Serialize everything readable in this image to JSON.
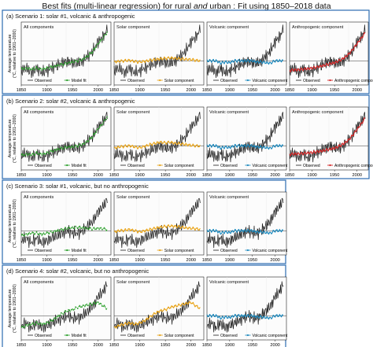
{
  "title": {
    "prefix": "Best fits (multi-linear regression) for rural ",
    "emph": "and",
    "suffix": " urban : Fit using 1850–2018 data"
  },
  "axis_label_lines": [
    "Average temperature",
    "(°C, relative to 1901–2000)"
  ],
  "x_ticks": [
    "1850",
    "1900",
    "1950",
    "2000"
  ],
  "colors": {
    "frame": "#2b6cb0",
    "observed": "#1a1a1a",
    "model_fit": "#2ca02c",
    "solar": "#e8a317",
    "volcanic": "#1f8bbf",
    "anthropogenic": "#d62728"
  },
  "chart_data": [
    {
      "type": "line",
      "scenario": "(a) Scenario 1: solar #1, volcanic & anthropogenic",
      "panels": [
        {
          "title": "All components",
          "component": "model_fit",
          "legend": [
            "Observed",
            "Model fit"
          ]
        },
        {
          "title": "Solar component",
          "component": "solar",
          "legend": [
            "Observed",
            "Solar component"
          ]
        },
        {
          "title": "Volcanic component",
          "component": "volcanic",
          "legend": [
            "Observed",
            "Volcanic component"
          ]
        },
        {
          "title": "Anthropogenic component",
          "component": "anthropogenic",
          "legend": [
            "Observed",
            "Anthropogenic component"
          ]
        }
      ],
      "x": [
        1850,
        1860,
        1870,
        1880,
        1890,
        1900,
        1910,
        1920,
        1930,
        1940,
        1950,
        1960,
        1970,
        1980,
        1990,
        2000,
        2010,
        2018
      ],
      "series": [
        {
          "name": "Observed",
          "values": [
            -0.4,
            -0.3,
            -0.5,
            -0.3,
            -0.5,
            -0.4,
            -0.3,
            -0.2,
            -0.1,
            0.0,
            -0.1,
            -0.1,
            0.0,
            0.2,
            0.4,
            0.8,
            1.0,
            1.3
          ]
        },
        {
          "name": "Model fit",
          "values": [
            -0.35,
            -0.3,
            -0.35,
            -0.3,
            -0.35,
            -0.3,
            -0.25,
            -0.2,
            -0.15,
            -0.1,
            -0.05,
            0.0,
            0.05,
            0.2,
            0.4,
            0.7,
            0.95,
            1.2
          ]
        },
        {
          "name": "Solar component",
          "values": [
            -0.05,
            -0.02,
            0.0,
            0.02,
            -0.03,
            -0.05,
            -0.02,
            0.02,
            0.05,
            0.08,
            0.1,
            0.12,
            0.1,
            0.08,
            0.06,
            0.05,
            0.02,
            0.0
          ]
        },
        {
          "name": "Volcanic component",
          "values": [
            0.0,
            0.0,
            0.0,
            -0.1,
            -0.05,
            -0.08,
            0.0,
            0.0,
            0.0,
            0.0,
            0.0,
            -0.05,
            -0.05,
            -0.08,
            -0.1,
            0.0,
            0.0,
            0.0
          ]
        },
        {
          "name": "Anthropogenic component",
          "values": [
            -0.4,
            -0.38,
            -0.37,
            -0.35,
            -0.33,
            -0.3,
            -0.27,
            -0.22,
            -0.18,
            -0.12,
            -0.08,
            0.0,
            0.1,
            0.25,
            0.45,
            0.7,
            0.95,
            1.15
          ]
        }
      ],
      "ylim": [
        -1.0,
        1.6
      ]
    },
    {
      "type": "line",
      "scenario": "(b) Scenario 2: solar #2, volcanic & anthropogenic",
      "panels": [
        {
          "title": "All components",
          "component": "model_fit",
          "legend": [
            "Observed",
            "Model fit"
          ]
        },
        {
          "title": "Solar component",
          "component": "solar",
          "legend": [
            "Observed",
            "Solar component"
          ]
        },
        {
          "title": "Volcanic component",
          "component": "volcanic",
          "legend": [
            "Observed",
            "Volcanic component"
          ]
        },
        {
          "title": "Anthropogenic component",
          "component": "anthropogenic",
          "legend": [
            "Observed",
            "Anthropogenic component"
          ]
        }
      ],
      "x": [
        1850,
        1860,
        1870,
        1880,
        1890,
        1900,
        1910,
        1920,
        1930,
        1940,
        1950,
        1960,
        1970,
        1980,
        1990,
        2000,
        2010,
        2018
      ],
      "series": [
        {
          "name": "Observed",
          "values": [
            -0.4,
            -0.3,
            -0.5,
            -0.3,
            -0.5,
            -0.4,
            -0.3,
            -0.2,
            -0.1,
            0.0,
            -0.1,
            -0.1,
            0.0,
            0.2,
            0.4,
            0.8,
            1.0,
            1.3
          ]
        },
        {
          "name": "Model fit",
          "values": [
            -0.4,
            -0.35,
            -0.38,
            -0.3,
            -0.35,
            -0.3,
            -0.22,
            -0.15,
            -0.1,
            -0.05,
            -0.05,
            0.0,
            0.05,
            0.2,
            0.4,
            0.7,
            0.95,
            1.2
          ]
        },
        {
          "name": "Solar component",
          "values": [
            -0.1,
            -0.05,
            -0.02,
            0.0,
            -0.05,
            -0.08,
            -0.02,
            0.05,
            0.1,
            0.15,
            0.12,
            0.15,
            0.1,
            0.08,
            0.05,
            0.02,
            0.0,
            -0.02
          ]
        },
        {
          "name": "Volcanic component",
          "values": [
            0.0,
            0.0,
            0.0,
            -0.1,
            -0.05,
            -0.08,
            0.0,
            0.0,
            0.0,
            0.0,
            0.0,
            -0.05,
            -0.05,
            -0.08,
            -0.1,
            0.0,
            0.0,
            0.0
          ]
        },
        {
          "name": "Anthropogenic component",
          "values": [
            -0.35,
            -0.34,
            -0.33,
            -0.32,
            -0.3,
            -0.28,
            -0.25,
            -0.22,
            -0.18,
            -0.14,
            -0.1,
            -0.02,
            0.08,
            0.22,
            0.42,
            0.68,
            0.92,
            1.15
          ]
        }
      ],
      "ylim": [
        -1.0,
        1.6
      ]
    },
    {
      "type": "line",
      "scenario": "(c) Scenario 3: solar #1, volcanic, but no anthropogenic",
      "panels": [
        {
          "title": "All components",
          "component": "model_fit",
          "legend": [
            "Observed",
            "Model fit"
          ]
        },
        {
          "title": "Solar component",
          "component": "solar",
          "legend": [
            "Observed",
            "Solar component"
          ]
        },
        {
          "title": "Volcanic component",
          "component": "volcanic",
          "legend": [
            "Observed",
            "Volcanic component"
          ]
        }
      ],
      "x": [
        1850,
        1860,
        1870,
        1880,
        1890,
        1900,
        1910,
        1920,
        1930,
        1940,
        1950,
        1960,
        1970,
        1980,
        1990,
        2000,
        2010,
        2018
      ],
      "series": [
        {
          "name": "Observed",
          "values": [
            -0.4,
            -0.3,
            -0.5,
            -0.3,
            -0.5,
            -0.4,
            -0.3,
            -0.2,
            -0.1,
            0.0,
            -0.1,
            -0.1,
            0.0,
            0.2,
            0.4,
            0.8,
            1.0,
            1.3
          ]
        },
        {
          "name": "Model fit",
          "values": [
            -0.2,
            -0.15,
            -0.1,
            -0.1,
            -0.15,
            -0.1,
            -0.05,
            0.0,
            0.05,
            0.1,
            0.12,
            0.15,
            0.12,
            0.1,
            0.08,
            0.1,
            0.08,
            0.05
          ]
        },
        {
          "name": "Solar component",
          "values": [
            -0.05,
            0.0,
            0.02,
            0.05,
            0.0,
            -0.05,
            0.0,
            0.05,
            0.1,
            0.15,
            0.18,
            0.2,
            0.18,
            0.15,
            0.12,
            0.1,
            0.08,
            0.05
          ]
        },
        {
          "name": "Volcanic component",
          "values": [
            0.0,
            0.0,
            0.0,
            -0.1,
            -0.05,
            -0.08,
            0.0,
            0.0,
            0.0,
            0.0,
            0.0,
            -0.05,
            -0.05,
            -0.08,
            -0.1,
            0.0,
            0.0,
            0.0
          ]
        }
      ],
      "ylim": [
        -1.0,
        1.6
      ]
    },
    {
      "type": "line",
      "scenario": "(d) Scenario 4: solar #2, volcanic, but no anthropogenic",
      "panels": [
        {
          "title": "All components",
          "component": "model_fit",
          "legend": [
            "Observed",
            "Model fit"
          ]
        },
        {
          "title": "Solar component",
          "component": "solar",
          "legend": [
            "Observed",
            "Solar component"
          ]
        },
        {
          "title": "Volcanic component",
          "component": "volcanic",
          "legend": [
            "Observed",
            "Volcanic component"
          ]
        }
      ],
      "x": [
        1850,
        1860,
        1870,
        1880,
        1890,
        1900,
        1910,
        1920,
        1930,
        1940,
        1950,
        1960,
        1970,
        1980,
        1990,
        2000,
        2010,
        2018
      ],
      "series": [
        {
          "name": "Observed",
          "values": [
            -0.4,
            -0.3,
            -0.5,
            -0.3,
            -0.5,
            -0.4,
            -0.3,
            -0.2,
            -0.1,
            0.0,
            -0.1,
            -0.1,
            0.0,
            0.2,
            0.4,
            0.8,
            1.0,
            1.3
          ]
        },
        {
          "name": "Model fit",
          "values": [
            -0.5,
            -0.4,
            -0.35,
            -0.3,
            -0.35,
            -0.3,
            -0.2,
            -0.05,
            0.1,
            0.2,
            0.25,
            0.35,
            0.4,
            0.45,
            0.5,
            0.55,
            0.4,
            0.3
          ]
        },
        {
          "name": "Solar component",
          "values": [
            -0.5,
            -0.4,
            -0.35,
            -0.3,
            -0.35,
            -0.3,
            -0.2,
            -0.05,
            0.1,
            0.2,
            0.25,
            0.35,
            0.4,
            0.45,
            0.5,
            0.55,
            0.4,
            0.3
          ]
        },
        {
          "name": "Volcanic component",
          "values": [
            0.0,
            0.0,
            0.0,
            -0.1,
            -0.05,
            -0.08,
            0.0,
            0.0,
            0.0,
            0.0,
            0.0,
            -0.05,
            -0.05,
            -0.08,
            -0.1,
            0.0,
            0.0,
            0.0
          ]
        }
      ],
      "ylim": [
        -1.0,
        1.6
      ]
    }
  ]
}
